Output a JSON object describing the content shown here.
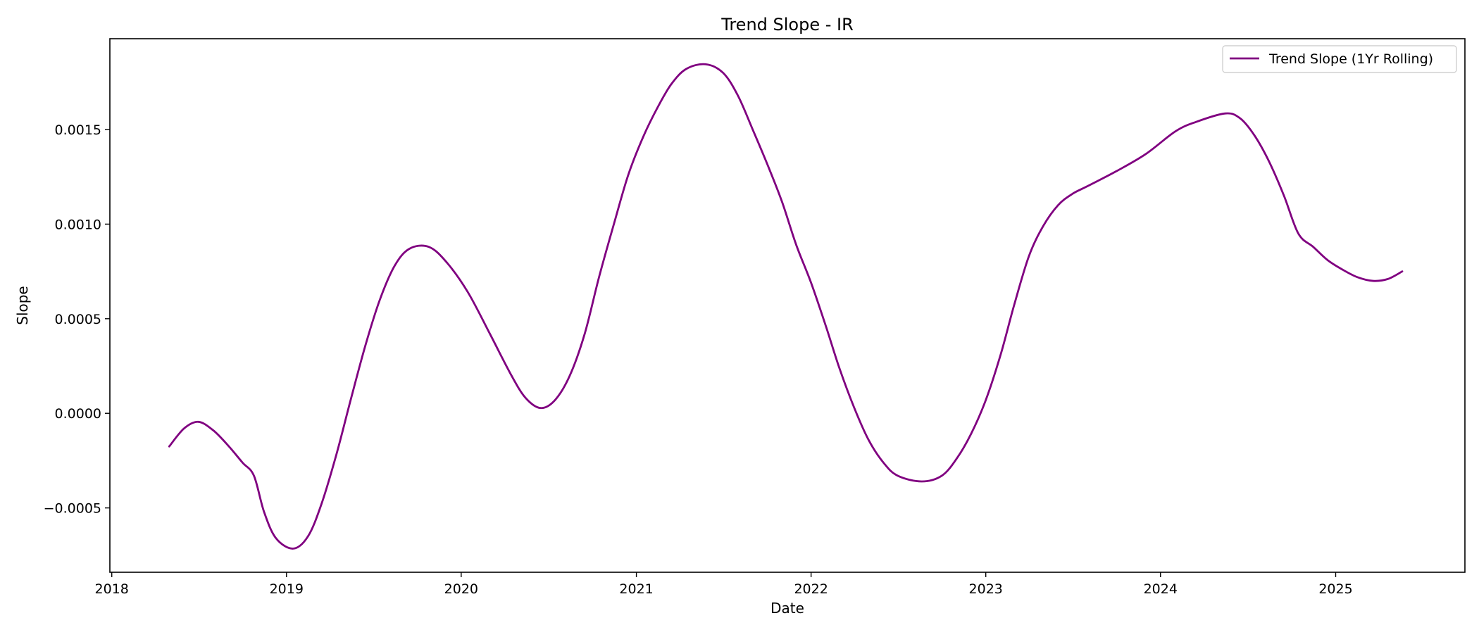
{
  "chart_data": {
    "type": "line",
    "title": "Trend Slope - IR",
    "xlabel": "Date",
    "ylabel": "Slope",
    "xlim": [
      "2017-12-28",
      "2025-09-28"
    ],
    "ylim": [
      -0.00084,
      0.00198
    ],
    "x_ticks": [
      {
        "value": "2018-01-01",
        "label": "2018"
      },
      {
        "value": "2019-01-01",
        "label": "2019"
      },
      {
        "value": "2020-01-01",
        "label": "2020"
      },
      {
        "value": "2021-01-01",
        "label": "2021"
      },
      {
        "value": "2022-01-01",
        "label": "2022"
      },
      {
        "value": "2023-01-01",
        "label": "2023"
      },
      {
        "value": "2024-01-01",
        "label": "2024"
      },
      {
        "value": "2025-01-01",
        "label": "2025"
      }
    ],
    "y_ticks": [
      {
        "value": -0.0005,
        "label": "−0.0005"
      },
      {
        "value": 0.0,
        "label": "0.0000"
      },
      {
        "value": 0.0005,
        "label": "0.0005"
      },
      {
        "value": 0.001,
        "label": "0.0010"
      },
      {
        "value": 0.0015,
        "label": "0.0015"
      }
    ],
    "grid": false,
    "legend_position": "top-right",
    "series": [
      {
        "name": "Trend Slope (1Yr Rolling)",
        "color": "#800080",
        "points": [
          {
            "x": "2018-05-01",
            "y": -0.000175
          },
          {
            "x": "2018-06-01",
            "y": -8e-05
          },
          {
            "x": "2018-07-01",
            "y": -4.5e-05
          },
          {
            "x": "2018-08-01",
            "y": -9e-05
          },
          {
            "x": "2018-09-01",
            "y": -0.00017
          },
          {
            "x": "2018-10-01",
            "y": -0.00026
          },
          {
            "x": "2018-10-25",
            "y": -0.00033
          },
          {
            "x": "2018-11-15",
            "y": -0.00052
          },
          {
            "x": "2018-12-10",
            "y": -0.00066
          },
          {
            "x": "2019-01-15",
            "y": -0.000715
          },
          {
            "x": "2019-02-15",
            "y": -0.00065
          },
          {
            "x": "2019-03-15",
            "y": -0.00048
          },
          {
            "x": "2019-04-15",
            "y": -0.00022
          },
          {
            "x": "2019-05-15",
            "y": 7e-05
          },
          {
            "x": "2019-06-15",
            "y": 0.00036
          },
          {
            "x": "2019-07-15",
            "y": 0.0006
          },
          {
            "x": "2019-08-15",
            "y": 0.00078
          },
          {
            "x": "2019-09-15",
            "y": 0.00087
          },
          {
            "x": "2019-10-25",
            "y": 0.00088
          },
          {
            "x": "2019-12-01",
            "y": 0.0008
          },
          {
            "x": "2020-01-15",
            "y": 0.00064
          },
          {
            "x": "2020-03-01",
            "y": 0.00042
          },
          {
            "x": "2020-04-15",
            "y": 0.0002
          },
          {
            "x": "2020-05-15",
            "y": 8e-05
          },
          {
            "x": "2020-06-15",
            "y": 2.8e-05
          },
          {
            "x": "2020-07-15",
            "y": 7e-05
          },
          {
            "x": "2020-08-15",
            "y": 0.0002
          },
          {
            "x": "2020-09-15",
            "y": 0.00042
          },
          {
            "x": "2020-10-15",
            "y": 0.00072
          },
          {
            "x": "2020-11-15",
            "y": 0.001
          },
          {
            "x": "2020-12-15",
            "y": 0.00126
          },
          {
            "x": "2021-01-15",
            "y": 0.00146
          },
          {
            "x": "2021-02-15",
            "y": 0.00162
          },
          {
            "x": "2021-03-15",
            "y": 0.00174
          },
          {
            "x": "2021-04-15",
            "y": 0.00182
          },
          {
            "x": "2021-05-25",
            "y": 0.001845
          },
          {
            "x": "2021-07-01",
            "y": 0.0018
          },
          {
            "x": "2021-08-01",
            "y": 0.00168
          },
          {
            "x": "2021-09-01",
            "y": 0.0015
          },
          {
            "x": "2021-10-01",
            "y": 0.00132
          },
          {
            "x": "2021-11-01",
            "y": 0.00112
          },
          {
            "x": "2021-12-01",
            "y": 0.00089
          },
          {
            "x": "2022-01-01",
            "y": 0.00069
          },
          {
            "x": "2022-02-01",
            "y": 0.00046
          },
          {
            "x": "2022-03-01",
            "y": 0.00024
          },
          {
            "x": "2022-04-01",
            "y": 3e-05
          },
          {
            "x": "2022-05-01",
            "y": -0.00014
          },
          {
            "x": "2022-06-01",
            "y": -0.00026
          },
          {
            "x": "2022-07-01",
            "y": -0.00033
          },
          {
            "x": "2022-08-20",
            "y": -0.00036
          },
          {
            "x": "2022-10-01",
            "y": -0.00033
          },
          {
            "x": "2022-11-01",
            "y": -0.00024
          },
          {
            "x": "2022-12-01",
            "y": -0.00011
          },
          {
            "x": "2023-01-01",
            "y": 7e-05
          },
          {
            "x": "2023-02-01",
            "y": 0.00031
          },
          {
            "x": "2023-03-01",
            "y": 0.00057
          },
          {
            "x": "2023-04-01",
            "y": 0.00083
          },
          {
            "x": "2023-05-01",
            "y": 0.00099
          },
          {
            "x": "2023-06-01",
            "y": 0.0011
          },
          {
            "x": "2023-07-01",
            "y": 0.00116
          },
          {
            "x": "2023-08-01",
            "y": 0.0012
          },
          {
            "x": "2023-10-01",
            "y": 0.00128
          },
          {
            "x": "2023-12-01",
            "y": 0.00137
          },
          {
            "x": "2024-02-01",
            "y": 0.00149
          },
          {
            "x": "2024-03-15",
            "y": 0.00154
          },
          {
            "x": "2024-05-15",
            "y": 0.001585
          },
          {
            "x": "2024-06-15",
            "y": 0.00156
          },
          {
            "x": "2024-07-15",
            "y": 0.00147
          },
          {
            "x": "2024-08-15",
            "y": 0.00133
          },
          {
            "x": "2024-09-15",
            "y": 0.00115
          },
          {
            "x": "2024-10-15",
            "y": 0.00095
          },
          {
            "x": "2024-11-15",
            "y": 0.00088
          },
          {
            "x": "2024-12-15",
            "y": 0.00081
          },
          {
            "x": "2025-01-15",
            "y": 0.00076
          },
          {
            "x": "2025-02-15",
            "y": 0.00072
          },
          {
            "x": "2025-03-20",
            "y": 0.0007
          },
          {
            "x": "2025-04-20",
            "y": 0.00071
          },
          {
            "x": "2025-05-20",
            "y": 0.00075
          }
        ]
      }
    ]
  }
}
